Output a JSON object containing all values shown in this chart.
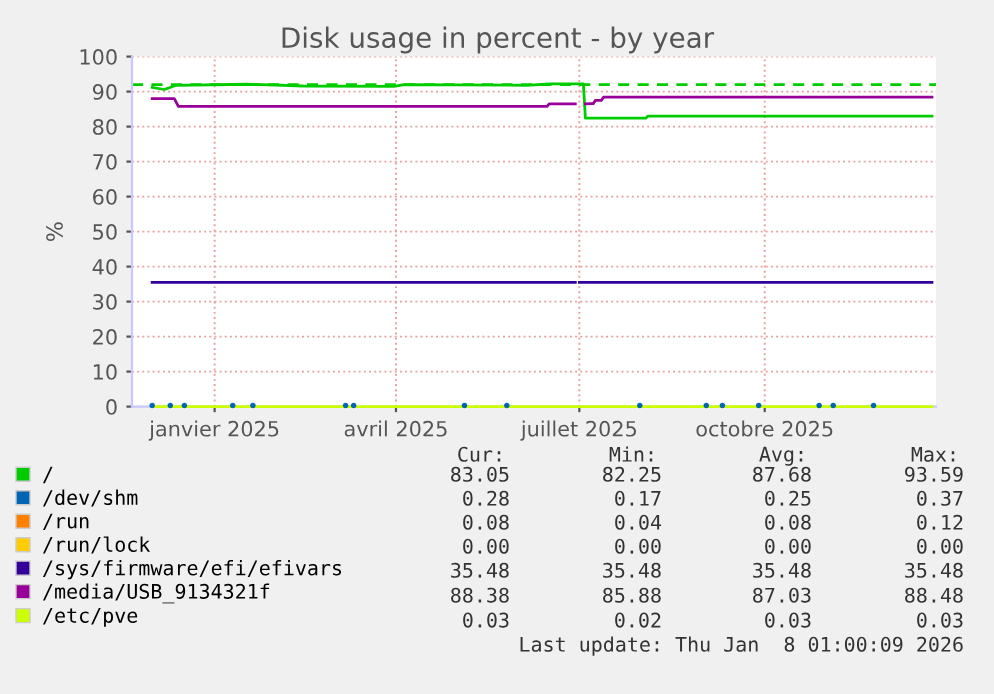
{
  "chart_data": {
    "type": "line",
    "title": "Disk usage in percent - by year",
    "ylabel": "%",
    "xlim": [
      "2024-12-06",
      "2026-01-09"
    ],
    "xticks": [
      {
        "value": "2025-01-16",
        "label": "janvier 2025"
      },
      {
        "value": "2025-04-16",
        "label": "avril 2025"
      },
      {
        "value": "2025-07-16",
        "label": "juillet 2025"
      },
      {
        "value": "2025-10-16",
        "label": "octobre 2025"
      }
    ],
    "ylim": [
      0,
      100
    ],
    "yticks": [
      0,
      10,
      20,
      30,
      40,
      50,
      60,
      70,
      80,
      90,
      100
    ],
    "grid": true,
    "legend": "bottom",
    "series": [
      {
        "name": "/",
        "color": "#00cc00",
        "x": [
          "2024-12-16",
          "2024-12-22",
          "2024-12-28",
          "2025-02-01",
          "2025-03-01",
          "2025-04-15",
          "2025-04-20",
          "2025-06-20",
          "2025-07-01",
          "2025-07-18",
          "2025-07-19",
          "2025-08-18",
          "2025-08-19",
          "2026-01-07"
        ],
        "values": [
          91.2,
          90.6,
          91.8,
          92.1,
          91.6,
          91.5,
          92.0,
          91.8,
          92.2,
          92.2,
          82.4,
          82.4,
          83.0,
          83.0
        ]
      },
      {
        "name": "/dev/shm",
        "color": "#0066b3",
        "type": "scatter",
        "marker": "circle",
        "x": [
          "2024-12-16",
          "2024-12-25",
          "2025-01-01",
          "2025-01-25",
          "2025-02-04",
          "2025-03-22",
          "2025-03-26",
          "2025-05-20",
          "2025-06-10",
          "2025-08-15",
          "2025-09-17",
          "2025-09-25",
          "2025-10-13",
          "2025-11-12",
          "2025-11-19",
          "2025-12-09"
        ],
        "values": [
          0.3,
          0.3,
          0.3,
          0.3,
          0.3,
          0.3,
          0.3,
          0.3,
          0.3,
          0.3,
          0.3,
          0.3,
          0.3,
          0.3,
          0.3,
          0.3
        ]
      },
      {
        "name": "/run",
        "color": "#ff8000"
      },
      {
        "name": "/run/lock",
        "color": "#ffcc00"
      },
      {
        "name": "/sys/firmware/efi/efivars",
        "color": "#330099",
        "x": [
          "2024-12-16",
          "2025-07-14",
          "2025-07-15",
          "2025-07-16",
          "2026-01-07"
        ],
        "values": [
          35.5,
          35.5,
          null,
          35.5,
          35.5
        ]
      },
      {
        "name": "/media/USB_9134321f",
        "color": "#990099",
        "x": [
          "2024-12-16",
          "2024-12-27",
          "2024-12-29",
          "2025-06-30",
          "2025-07-01",
          "2025-07-14",
          "2025-07-15",
          "2025-07-19",
          "2025-07-23",
          "2025-07-24",
          "2025-07-27",
          "2025-07-28",
          "2026-01-07"
        ],
        "values": [
          88.0,
          88.0,
          85.8,
          85.8,
          86.5,
          86.5,
          null,
          86.5,
          86.6,
          87.5,
          87.5,
          88.4,
          88.4
        ]
      },
      {
        "name": "/etc/pve",
        "color": "#ccff00",
        "x": [
          "2024-12-16",
          "2026-01-07"
        ],
        "values": [
          0,
          0
        ]
      }
    ],
    "ref_lines": [
      {
        "axis": "y",
        "value": 92,
        "color": "#00cc00",
        "line_style": "dashed"
      }
    ],
    "annotations": [
      "Cur:",
      "Min:",
      "Avg:",
      "Max:",
      "83.05",
      "82.25",
      "87.68",
      "93.59",
      "0.28",
      "0.17",
      "0.25",
      "0.37",
      "0.08",
      "0.04",
      "0.08",
      "0.12",
      "0.00",
      "0.00",
      "0.00",
      "0.00",
      "35.48",
      "35.48",
      "35.48",
      "35.48",
      "88.38",
      "85.88",
      "87.03",
      "88.48",
      "0.03",
      "0.02",
      "0.03",
      "0.03",
      "Last update: Thu Jan  8 01:00:09 2026"
    ]
  }
}
